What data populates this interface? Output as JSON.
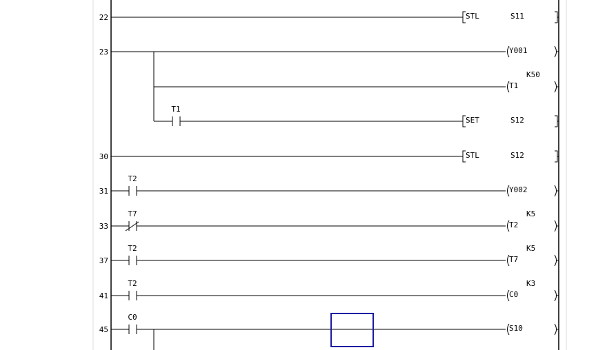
{
  "editor": {
    "selection_color": "#1a1aa0",
    "rungs": [
      {
        "step": "22",
        "contacts": [],
        "output": {
          "kind": "instruction",
          "op": "STL",
          "arg": "S11"
        }
      },
      {
        "step": "23",
        "contacts": [],
        "output": {
          "kind": "coil",
          "op": "Y001"
        },
        "branches": [
          {
            "contacts": [],
            "output": {
              "kind": "coil",
              "op": "T1",
              "setting": "K50"
            }
          },
          {
            "contacts": [
              {
                "label": "T1",
                "type": "no"
              }
            ],
            "output": {
              "kind": "instruction",
              "op": "SET",
              "arg": "S12"
            }
          }
        ]
      },
      {
        "step": "30",
        "contacts": [],
        "output": {
          "kind": "instruction",
          "op": "STL",
          "arg": "S12"
        }
      },
      {
        "step": "31",
        "contacts": [
          {
            "label": "T2",
            "type": "no"
          }
        ],
        "output": {
          "kind": "coil",
          "op": "Y002"
        }
      },
      {
        "step": "33",
        "contacts": [
          {
            "label": "T7",
            "type": "nc"
          }
        ],
        "output": {
          "kind": "coil",
          "op": "T2",
          "setting": "K5"
        }
      },
      {
        "step": "37",
        "contacts": [
          {
            "label": "T2",
            "type": "no"
          }
        ],
        "output": {
          "kind": "coil",
          "op": "T7",
          "setting": "K5"
        }
      },
      {
        "step": "41",
        "contacts": [
          {
            "label": "T2",
            "type": "no"
          }
        ],
        "output": {
          "kind": "coil",
          "op": "C0",
          "setting": "K3"
        }
      },
      {
        "step": "45",
        "contacts": [
          {
            "label": "C0",
            "type": "no"
          }
        ],
        "output": {
          "kind": "coil",
          "op": "S10"
        },
        "has_branch_below": true
      }
    ]
  }
}
